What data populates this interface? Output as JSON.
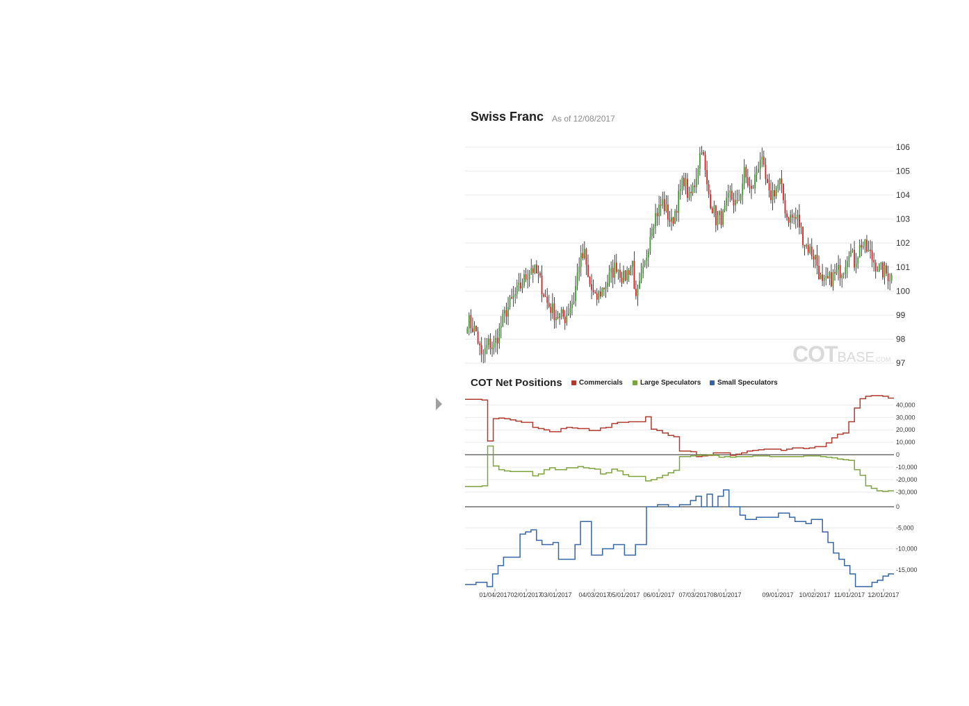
{
  "header": {
    "title": "Swiss Franc",
    "as_of": "As of 12/08/2017"
  },
  "watermark": {
    "part1": "COT",
    "part2": "BASE",
    "part3": ".COM"
  },
  "cot_panel": {
    "title": "COT Net Positions",
    "legend": [
      {
        "label": "Commercials",
        "color": "#b03a2e"
      },
      {
        "label": "Large Speculators",
        "color": "#7ea33a"
      },
      {
        "label": "Small Speculators",
        "color": "#3465a4"
      }
    ]
  },
  "colors": {
    "up": "#3c9a2e",
    "down": "#d62020",
    "wick": "#111111",
    "grid": "#e9e9e9"
  },
  "chart_data": [
    {
      "type": "candlestick",
      "title": "Swiss Franc",
      "subtitle": "As of 12/08/2017",
      "ylim": [
        96.8,
        106.4
      ],
      "yticks": [
        106,
        105,
        104,
        103,
        102,
        101,
        100,
        99,
        98,
        97
      ],
      "n_bars": 240,
      "anchors": [
        [
          0,
          98.8
        ],
        [
          5,
          98.3
        ],
        [
          8,
          97.2
        ],
        [
          12,
          97.8
        ],
        [
          15,
          97.7
        ],
        [
          22,
          99.2
        ],
        [
          30,
          100.2
        ],
        [
          36,
          101.0
        ],
        [
          40,
          100.6
        ],
        [
          45,
          99.5
        ],
        [
          50,
          99.0
        ],
        [
          55,
          98.9
        ],
        [
          60,
          99.7
        ],
        [
          63,
          101.2
        ],
        [
          66,
          101.5
        ],
        [
          68,
          100.5
        ],
        [
          72,
          99.6
        ],
        [
          78,
          100.3
        ],
        [
          84,
          101.1
        ],
        [
          88,
          100.5
        ],
        [
          93,
          101.2
        ],
        [
          95,
          99.5
        ],
        [
          100,
          101.1
        ],
        [
          104,
          102.9
        ],
        [
          110,
          103.7
        ],
        [
          115,
          102.8
        ],
        [
          122,
          104.7
        ],
        [
          125,
          103.8
        ],
        [
          128,
          104.5
        ],
        [
          132,
          106.1
        ],
        [
          135,
          104.3
        ],
        [
          140,
          103.0
        ],
        [
          144,
          103.1
        ],
        [
          148,
          104.0
        ],
        [
          152,
          103.5
        ],
        [
          156,
          104.9
        ],
        [
          160,
          104.1
        ],
        [
          165,
          105.6
        ],
        [
          170,
          103.9
        ],
        [
          176,
          104.5
        ],
        [
          180,
          103.1
        ],
        [
          186,
          103.0
        ],
        [
          190,
          102.0
        ],
        [
          196,
          101.4
        ],
        [
          200,
          100.2
        ],
        [
          206,
          100.6
        ],
        [
          212,
          101.0
        ],
        [
          215,
          101.8
        ],
        [
          218,
          101.2
        ],
        [
          222,
          102.0
        ],
        [
          226,
          101.6
        ],
        [
          232,
          100.9
        ],
        [
          239,
          100.6
        ]
      ]
    },
    {
      "type": "line",
      "title": "COT Net Positions",
      "x_labels": [
        "01/04/2017",
        "02/01/2017",
        "03/01/2017",
        "04/03/2017",
        "05/01/2017",
        "06/01/2017",
        "07/03/2017",
        "08/01/2017",
        "09/01/2017",
        "10/02/2017",
        "11/01/2017",
        "12/01/2017"
      ],
      "panels": [
        {
          "ylim": [
            -34000,
            48000
          ],
          "yticks": [
            40000,
            30000,
            20000,
            10000,
            0,
            -10000,
            -20000,
            -30000
          ],
          "ytick_labels": [
            "40,000",
            "30,000",
            "20,000",
            "10,000",
            "0",
            "-10,000",
            "-20,000",
            "-30,000"
          ],
          "series": [
            {
              "name": "Commercials",
              "color": "#b03a2e",
              "values": [
                44500,
                44500,
                44500,
                44000,
                11000,
                29000,
                29500,
                29000,
                28000,
                27000,
                26000,
                26000,
                22000,
                21000,
                20000,
                18500,
                18500,
                21000,
                22000,
                21500,
                21000,
                21000,
                19500,
                19500,
                21500,
                22000,
                25000,
                26000,
                26000,
                26500,
                26500,
                26500,
                30500,
                20500,
                19500,
                17500,
                15500,
                14500,
                3000,
                3000,
                2500,
                -1500,
                -1000,
                -500,
                1500,
                1500,
                1500,
                -500,
                500,
                1500,
                3000,
                3500,
                4000,
                4500,
                4500,
                4500,
                3500,
                4500,
                5500,
                5500,
                5000,
                5500,
                6500,
                6500,
                9500,
                13500,
                16500,
                17500,
                26500,
                37500,
                45000,
                47000,
                47500,
                47500,
                47000,
                45500
              ]
            },
            {
              "name": "Large Speculators",
              "color": "#7ea33a",
              "values": [
                -25500,
                -25500,
                -25500,
                -25000,
                7000,
                -9000,
                -12000,
                -13000,
                -13500,
                -13500,
                -13500,
                -13500,
                -17000,
                -15500,
                -12000,
                -10500,
                -12000,
                -12000,
                -10500,
                -10500,
                -9500,
                -10500,
                -11000,
                -11500,
                -15500,
                -14500,
                -11500,
                -13000,
                -16000,
                -17500,
                -17500,
                -17500,
                -21000,
                -20000,
                -18500,
                -16500,
                -14500,
                -12500,
                -1500,
                -1500,
                -1000,
                -500,
                -500,
                0,
                -500,
                -2000,
                -1500,
                -2000,
                -1500,
                -1500,
                -1500,
                -1000,
                -1000,
                -1000,
                -1500,
                -1500,
                -1500,
                -1500,
                -1500,
                -1500,
                -1000,
                -1000,
                -1000,
                -1500,
                -2000,
                -2500,
                -3500,
                -4000,
                -4500,
                -12000,
                -16500,
                -25000,
                -27000,
                -29000,
                -29500,
                -29000
              ]
            }
          ]
        },
        {
          "ylim": [
            -19500,
            500
          ],
          "yticks": [
            0,
            -5000,
            -10000,
            -15000
          ],
          "ytick_labels": [
            "0",
            "-5,000",
            "-10,000",
            "-15,000"
          ],
          "series": [
            {
              "name": "Small Speculators",
              "color": "#3465a4",
              "values": [
                -18500,
                -18500,
                -18000,
                -18000,
                -19000,
                -16000,
                -14000,
                -12000,
                -12000,
                -12000,
                -6500,
                -6000,
                -5500,
                -8000,
                -9000,
                -9000,
                -8500,
                -12500,
                -12500,
                -12500,
                -9000,
                -3500,
                -3500,
                -11500,
                -11500,
                -10000,
                -10000,
                -9000,
                -9000,
                -11500,
                -11500,
                -9000,
                -9000,
                0,
                0,
                500,
                500,
                0,
                0,
                500,
                500,
                1500,
                2500,
                0,
                3000,
                0,
                2500,
                4000,
                0,
                0,
                -2000,
                -3000,
                -3000,
                -2500,
                -2500,
                -2500,
                -2500,
                -1500,
                -1500,
                -2500,
                -3500,
                -3500,
                -4000,
                -3000,
                -3000,
                -6000,
                -8500,
                -11000,
                -12500,
                -14000,
                -16000,
                -19000,
                -19000,
                -19000,
                -18000,
                -17500,
                -16500,
                -16000
              ]
            }
          ]
        }
      ]
    }
  ]
}
